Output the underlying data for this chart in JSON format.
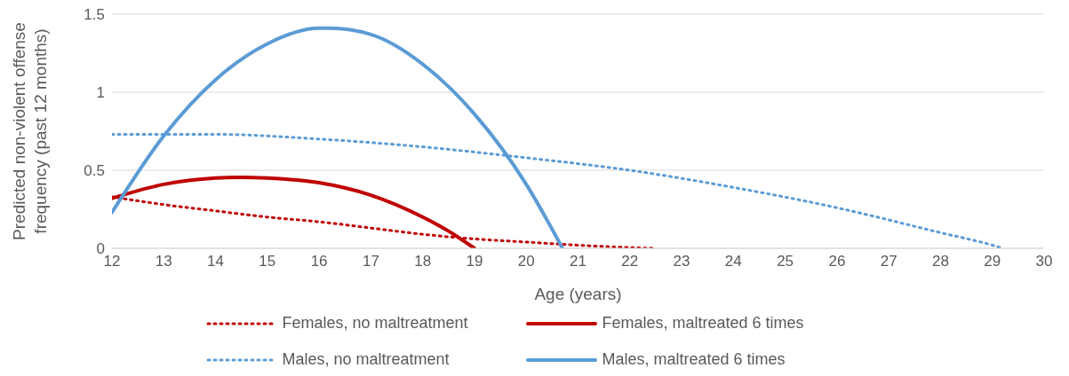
{
  "chart_data": {
    "type": "line",
    "xlabel": "Age (years)",
    "ylabel": "Predicted non-violent offense frequency (past 12 months)",
    "xlim": [
      12,
      30
    ],
    "xticks": [
      12,
      13,
      14,
      15,
      16,
      17,
      18,
      19,
      20,
      21,
      22,
      23,
      24,
      25,
      26,
      27,
      28,
      29,
      30
    ],
    "ylim": [
      0,
      1.5
    ],
    "yticks": [
      0,
      0.5,
      1,
      1.5
    ],
    "grid": "y",
    "legend": "bottom",
    "marker": "none",
    "series": [
      {
        "name": "Females, no maltreatment",
        "color": "#c00000",
        "line_style": "dotted",
        "x": [
          12,
          13,
          14,
          15,
          16,
          17,
          18,
          19,
          20,
          21,
          22,
          22.5
        ],
        "values": [
          0.33,
          0.28,
          0.24,
          0.2,
          0.17,
          0.13,
          0.09,
          0.06,
          0.04,
          0.02,
          0.005,
          0
        ]
      },
      {
        "name": "Females, maltreated 6 times",
        "color": "#c00000",
        "line_style": "solid",
        "x": [
          12,
          13,
          14,
          14.5,
          15,
          16,
          17,
          18,
          18.5,
          19
        ],
        "values": [
          0.32,
          0.41,
          0.45,
          0.455,
          0.45,
          0.42,
          0.34,
          0.2,
          0.11,
          0
        ]
      },
      {
        "name": "Males, no maltreatment",
        "color": "#5b9bd5",
        "line_style": "dotted",
        "x": [
          12,
          14,
          16,
          18,
          20,
          22,
          24,
          26,
          28,
          29,
          29.2
        ],
        "values": [
          0.73,
          0.73,
          0.7,
          0.65,
          0.58,
          0.5,
          0.39,
          0.26,
          0.1,
          0.02,
          0
        ]
      },
      {
        "name": "Males, maltreated 6 times",
        "color": "#5b9bd5",
        "line_style": "solid",
        "x": [
          12,
          13,
          14,
          15,
          16,
          16.2,
          17,
          18,
          19,
          20,
          20.7
        ],
        "values": [
          0.23,
          0.72,
          1.08,
          1.31,
          1.41,
          1.41,
          1.37,
          1.18,
          0.86,
          0.41,
          0
        ]
      }
    ]
  }
}
